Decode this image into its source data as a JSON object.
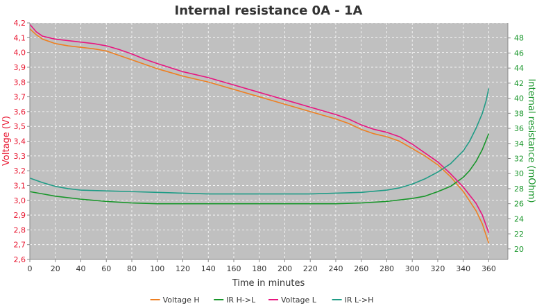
{
  "chart_data": {
    "type": "line",
    "title": "Internal resistance  0A - 1A",
    "xlabel": "Time in minutes",
    "ylabel_left": "Voltage (V)",
    "ylabel_right": "Internal resistance (mOhm)",
    "xlim": [
      0,
      375
    ],
    "ylim_left": [
      2.6,
      4.2
    ],
    "ylim_right": [
      18.6,
      50
    ],
    "x_ticks": [
      0,
      20,
      40,
      60,
      80,
      100,
      120,
      140,
      160,
      180,
      200,
      220,
      240,
      260,
      280,
      300,
      320,
      340,
      360
    ],
    "y_ticks_left": [
      "2,6",
      "2,7",
      "2,8",
      "2,9",
      "3,0",
      "3,1",
      "3,2",
      "3,3",
      "3,4",
      "3,5",
      "3,6",
      "3,7",
      "3,8",
      "3,9",
      "4,0",
      "4,1",
      "4,2"
    ],
    "y_ticks_right": [
      "20",
      "22",
      "24",
      "26",
      "28",
      "30",
      "32",
      "34",
      "36",
      "38",
      "40",
      "42",
      "44",
      "46",
      "48"
    ],
    "grid": true,
    "legend_position": "bottom",
    "series": [
      {
        "name": "Voltage H",
        "axis": "left",
        "color": "#ee7f21",
        "x": [
          0,
          5,
          10,
          20,
          30,
          40,
          50,
          60,
          70,
          80,
          90,
          100,
          120,
          140,
          160,
          180,
          200,
          220,
          240,
          250,
          260,
          270,
          280,
          290,
          300,
          310,
          320,
          330,
          340,
          350,
          355,
          360
        ],
        "y": [
          4.16,
          4.12,
          4.09,
          4.06,
          4.045,
          4.035,
          4.025,
          4.01,
          3.98,
          3.95,
          3.92,
          3.89,
          3.84,
          3.8,
          3.75,
          3.7,
          3.65,
          3.6,
          3.55,
          3.52,
          3.48,
          3.45,
          3.43,
          3.4,
          3.35,
          3.3,
          3.24,
          3.16,
          3.06,
          2.93,
          2.84,
          2.71
        ]
      },
      {
        "name": "IR H->L",
        "axis": "right",
        "color": "#18962a",
        "x": [
          0,
          10,
          20,
          40,
          60,
          80,
          100,
          120,
          140,
          160,
          180,
          200,
          220,
          240,
          260,
          280,
          300,
          310,
          320,
          330,
          340,
          345,
          350,
          355,
          360
        ],
        "y": [
          27.6,
          27.3,
          27.0,
          26.6,
          26.3,
          26.1,
          26.0,
          26.0,
          26.0,
          26.0,
          26.0,
          26.0,
          26.0,
          26.0,
          26.1,
          26.3,
          26.7,
          27.0,
          27.6,
          28.3,
          29.5,
          30.4,
          31.6,
          33.2,
          35.3
        ]
      },
      {
        "name": "Voltage L",
        "axis": "left",
        "color": "#e8157f",
        "x": [
          0,
          5,
          10,
          20,
          30,
          40,
          50,
          60,
          70,
          80,
          90,
          100,
          120,
          140,
          160,
          180,
          200,
          220,
          240,
          250,
          260,
          270,
          280,
          290,
          300,
          310,
          320,
          330,
          340,
          350,
          355,
          360
        ],
        "y": [
          4.19,
          4.14,
          4.11,
          4.09,
          4.08,
          4.07,
          4.06,
          4.045,
          4.02,
          3.99,
          3.955,
          3.925,
          3.87,
          3.83,
          3.78,
          3.73,
          3.68,
          3.63,
          3.58,
          3.55,
          3.51,
          3.48,
          3.46,
          3.43,
          3.38,
          3.32,
          3.26,
          3.18,
          3.09,
          2.98,
          2.9,
          2.78
        ]
      },
      {
        "name": "IR L->H",
        "axis": "right",
        "color": "#1f9c86",
        "x": [
          0,
          10,
          20,
          30,
          40,
          60,
          80,
          100,
          120,
          140,
          160,
          180,
          200,
          220,
          240,
          260,
          280,
          290,
          300,
          310,
          320,
          330,
          340,
          345,
          350,
          355,
          358,
          360
        ],
        "y": [
          29.4,
          28.8,
          28.3,
          28.0,
          27.8,
          27.7,
          27.6,
          27.5,
          27.4,
          27.3,
          27.3,
          27.3,
          27.3,
          27.3,
          27.4,
          27.5,
          27.8,
          28.1,
          28.6,
          29.3,
          30.2,
          31.3,
          33.0,
          34.3,
          36.0,
          38.0,
          39.7,
          41.3
        ]
      }
    ]
  }
}
